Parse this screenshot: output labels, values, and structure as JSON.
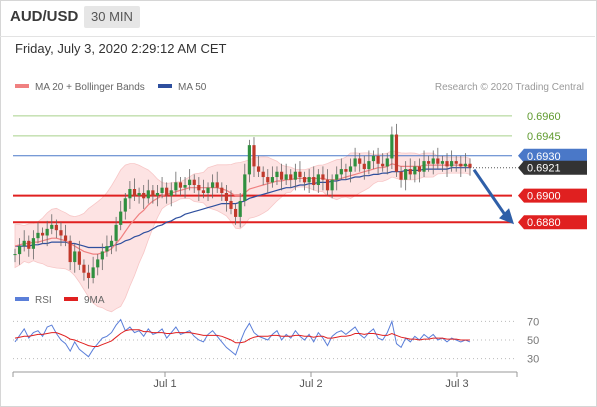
{
  "header": {
    "symbol": "AUD/USD",
    "timeframe": "30 MIN",
    "datetime": "Friday, July 3, 2020 2:29:12 AM CET"
  },
  "colors": {
    "ma20": "#f08080",
    "ma50": "#2e4f9e",
    "bollinger_fill": "#fde3e3",
    "candle_up": "#2f8f3f",
    "candle_down": "#c0392b",
    "resistance": "#a6d08a",
    "pivot": "#4a78c8",
    "support": "#e02020",
    "current": "#333333",
    "rsi": "#5b7fd9",
    "rsi_ma": "#e02020",
    "arrow": "#2f5fa8"
  },
  "chart_data": [
    {
      "type": "candlestick",
      "legend": [
        {
          "name": "MA 20 + Bollinger Bands",
          "color": "#f08080"
        },
        {
          "name": "MA 50",
          "color": "#2e4f9e"
        }
      ],
      "legend_position": "top-left",
      "watermark": "Research © 2020 Trading Central",
      "ylim": [
        0.6835,
        0.6975
      ],
      "x_ticks": [
        "Jul 1",
        "Jul 2",
        "Jul 3"
      ],
      "close_series": [
        0.6856,
        0.6862,
        0.6866,
        0.686,
        0.6868,
        0.6872,
        0.687,
        0.6875,
        0.6878,
        0.6874,
        0.687,
        0.6866,
        0.685,
        0.6858,
        0.6848,
        0.6842,
        0.6838,
        0.6846,
        0.6852,
        0.6858,
        0.6862,
        0.6866,
        0.6878,
        0.6888,
        0.6898,
        0.6905,
        0.69,
        0.6902,
        0.6898,
        0.6904,
        0.69,
        0.6902,
        0.6906,
        0.69,
        0.6904,
        0.691,
        0.6906,
        0.6908,
        0.6912,
        0.6908,
        0.6904,
        0.6902,
        0.6906,
        0.691,
        0.6906,
        0.6902,
        0.6896,
        0.689,
        0.6884,
        0.6896,
        0.6916,
        0.6938,
        0.6922,
        0.6918,
        0.6914,
        0.691,
        0.6914,
        0.6918,
        0.6912,
        0.6916,
        0.6912,
        0.6918,
        0.6914,
        0.691,
        0.6914,
        0.6908,
        0.6916,
        0.6912,
        0.6904,
        0.6912,
        0.6916,
        0.692,
        0.6918,
        0.6922,
        0.6928,
        0.6924,
        0.692,
        0.6926,
        0.693,
        0.6924,
        0.6922,
        0.6928,
        0.6946,
        0.6918,
        0.6912,
        0.692,
        0.6916,
        0.6922,
        0.6918,
        0.6926,
        0.6924,
        0.6928,
        0.6924,
        0.6926,
        0.6922,
        0.6926,
        0.6924,
        0.6922,
        0.6924,
        0.6921
      ],
      "ma20_series": [
        0.6862,
        0.6863,
        0.6864,
        0.6864,
        0.6865,
        0.6865,
        0.6866,
        0.6867,
        0.6868,
        0.6868,
        0.6867,
        0.6866,
        0.6864,
        0.6862,
        0.686,
        0.6858,
        0.6857,
        0.6856,
        0.6856,
        0.6857,
        0.6858,
        0.686,
        0.6864,
        0.6868,
        0.6873,
        0.6878,
        0.6882,
        0.6886,
        0.6889,
        0.6893,
        0.6896,
        0.6898,
        0.69,
        0.6901,
        0.6902,
        0.6903,
        0.6904,
        0.6905,
        0.6906,
        0.6906,
        0.6906,
        0.6906,
        0.6906,
        0.6906,
        0.6906,
        0.6905,
        0.6904,
        0.6902,
        0.69,
        0.69,
        0.6902,
        0.6905,
        0.6906,
        0.6907,
        0.6908,
        0.6909,
        0.691,
        0.6911,
        0.6911,
        0.6912,
        0.6912,
        0.6913,
        0.6913,
        0.6913,
        0.6913,
        0.6913,
        0.6913,
        0.6913,
        0.6912,
        0.6912,
        0.6912,
        0.6913,
        0.6914,
        0.6915,
        0.6916,
        0.6917,
        0.6918,
        0.6919,
        0.692,
        0.6921,
        0.6921,
        0.6922,
        0.6924,
        0.6923,
        0.6922,
        0.6922,
        0.6922,
        0.6922,
        0.6922,
        0.6923,
        0.6923,
        0.6923,
        0.6923,
        0.6923,
        0.6923,
        0.6923,
        0.6923,
        0.6923,
        0.6923,
        0.6922
      ],
      "ma50_series": [
        0.6862,
        0.6862,
        0.6862,
        0.6862,
        0.6863,
        0.6863,
        0.6864,
        0.6864,
        0.6865,
        0.6865,
        0.6865,
        0.6865,
        0.6864,
        0.6864,
        0.6863,
        0.6862,
        0.6861,
        0.6861,
        0.6861,
        0.6861,
        0.6861,
        0.6862,
        0.6863,
        0.6864,
        0.6866,
        0.6867,
        0.6869,
        0.687,
        0.6872,
        0.6873,
        0.6875,
        0.6877,
        0.6878,
        0.688,
        0.6881,
        0.6883,
        0.6884,
        0.6886,
        0.6887,
        0.6888,
        0.6889,
        0.689,
        0.6891,
        0.6892,
        0.6893,
        0.6894,
        0.6894,
        0.6894,
        0.6894,
        0.6895,
        0.6896,
        0.6898,
        0.6899,
        0.69,
        0.6901,
        0.6902,
        0.6903,
        0.6904,
        0.6905,
        0.6906,
        0.6906,
        0.6907,
        0.6908,
        0.6908,
        0.6909,
        0.6909,
        0.691,
        0.691,
        0.691,
        0.6911,
        0.6911,
        0.6912,
        0.6912,
        0.6913,
        0.6914,
        0.6914,
        0.6915,
        0.6915,
        0.6916,
        0.6916,
        0.6917,
        0.6917,
        0.6918,
        0.6918,
        0.6918,
        0.6919,
        0.6919,
        0.6919,
        0.6919,
        0.692,
        0.692,
        0.692,
        0.692,
        0.692,
        0.692,
        0.6921,
        0.6921,
        0.6921,
        0.6921,
        0.6921
      ],
      "levels": [
        {
          "value": 0.696,
          "label": "0.6960",
          "kind": "resistance"
        },
        {
          "value": 0.6945,
          "label": "0.6945",
          "kind": "resistance"
        },
        {
          "value": 0.693,
          "label": "0.6930",
          "kind": "pivot"
        },
        {
          "value": 0.69,
          "label": "0.6900",
          "kind": "support"
        },
        {
          "value": 0.688,
          "label": "0.6880",
          "kind": "support"
        }
      ],
      "current_price": {
        "value": 0.6921,
        "label": "0.6921"
      },
      "forecast_arrow": {
        "from": 0.6921,
        "to": 0.688,
        "direction": "down"
      }
    },
    {
      "type": "line",
      "legend": [
        {
          "name": "RSI",
          "color": "#5b7fd9"
        },
        {
          "name": "9MA",
          "color": "#e02020"
        }
      ],
      "legend_position": "top-left",
      "ylim": [
        22,
        78
      ],
      "y_ticks": [
        70,
        50,
        30
      ],
      "y_tick_labels": [
        "70",
        "50",
        "30"
      ],
      "rsi_series": [
        48,
        55,
        62,
        52,
        58,
        60,
        54,
        64,
        66,
        57,
        50,
        46,
        38,
        48,
        40,
        36,
        32,
        40,
        46,
        52,
        54,
        58,
        66,
        72,
        60,
        64,
        58,
        60,
        54,
        62,
        56,
        58,
        62,
        52,
        58,
        64,
        56,
        58,
        60,
        54,
        50,
        48,
        56,
        60,
        54,
        48,
        42,
        38,
        34,
        48,
        60,
        68,
        58,
        54,
        52,
        50,
        56,
        60,
        50,
        56,
        52,
        60,
        54,
        50,
        56,
        48,
        58,
        52,
        44,
        54,
        58,
        60,
        56,
        60,
        64,
        56,
        52,
        58,
        62,
        52,
        50,
        58,
        70,
        46,
        42,
        52,
        48,
        54,
        50,
        56,
        52,
        56,
        50,
        52,
        48,
        52,
        50,
        48,
        50,
        48
      ],
      "rsi_ma_series": [
        52,
        53,
        54,
        54,
        55,
        56,
        56,
        57,
        58,
        58,
        56,
        54,
        51,
        50,
        48,
        46,
        44,
        43,
        43,
        45,
        47,
        49,
        53,
        57,
        60,
        61,
        61,
        61,
        59,
        59,
        58,
        58,
        58,
        57,
        57,
        58,
        58,
        58,
        58,
        57,
        56,
        55,
        55,
        55,
        55,
        54,
        52,
        50,
        47,
        47,
        48,
        51,
        53,
        54,
        54,
        54,
        55,
        55,
        54,
        54,
        54,
        55,
        55,
        54,
        54,
        53,
        54,
        54,
        52,
        52,
        53,
        54,
        54,
        55,
        57,
        57,
        56,
        57,
        57,
        56,
        55,
        55,
        57,
        55,
        53,
        52,
        51,
        51,
        50,
        51,
        51,
        52,
        52,
        52,
        51,
        51,
        51,
        50,
        50,
        50
      ]
    }
  ]
}
